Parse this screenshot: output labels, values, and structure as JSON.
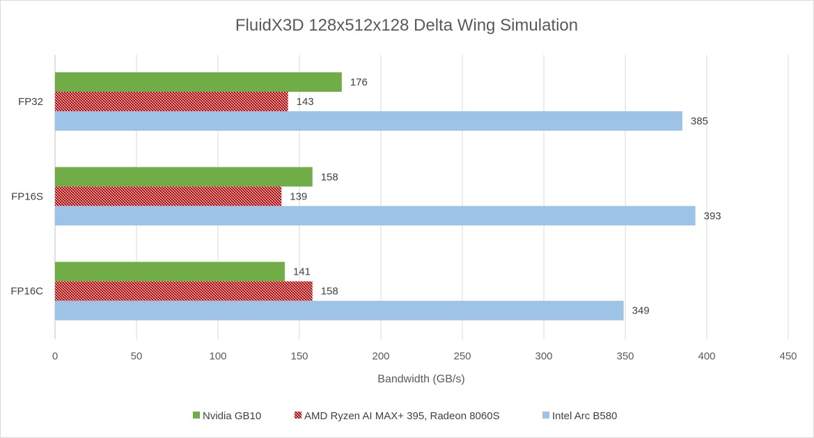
{
  "chart_data": {
    "type": "bar",
    "orientation": "horizontal",
    "title": "FluidX3D 128x512x128 Delta Wing Simulation",
    "xlabel": "Bandwidth (GB/s)",
    "ylabel": "",
    "xlim": [
      0,
      450
    ],
    "x_ticks": [
      "0",
      "50",
      "100",
      "150",
      "200",
      "250",
      "300",
      "350",
      "400",
      "450"
    ],
    "categories": [
      "FP32",
      "FP16S",
      "FP16C"
    ],
    "series": [
      {
        "name": "Nvidia GB10",
        "values": [
          176,
          158,
          141
        ],
        "color": "#70ad47",
        "pattern": "solid"
      },
      {
        "name": "AMD Ryzen AI MAX+ 395, Radeon 8060S",
        "values": [
          143,
          139,
          158
        ],
        "color": "#c00000",
        "pattern": "crosshatch"
      },
      {
        "name": "Intel Arc B580",
        "values": [
          385,
          393,
          349
        ],
        "color": "#9dc3e6",
        "pattern": "solid"
      }
    ],
    "grid": true,
    "legend_position": "bottom",
    "data_labels": true
  }
}
